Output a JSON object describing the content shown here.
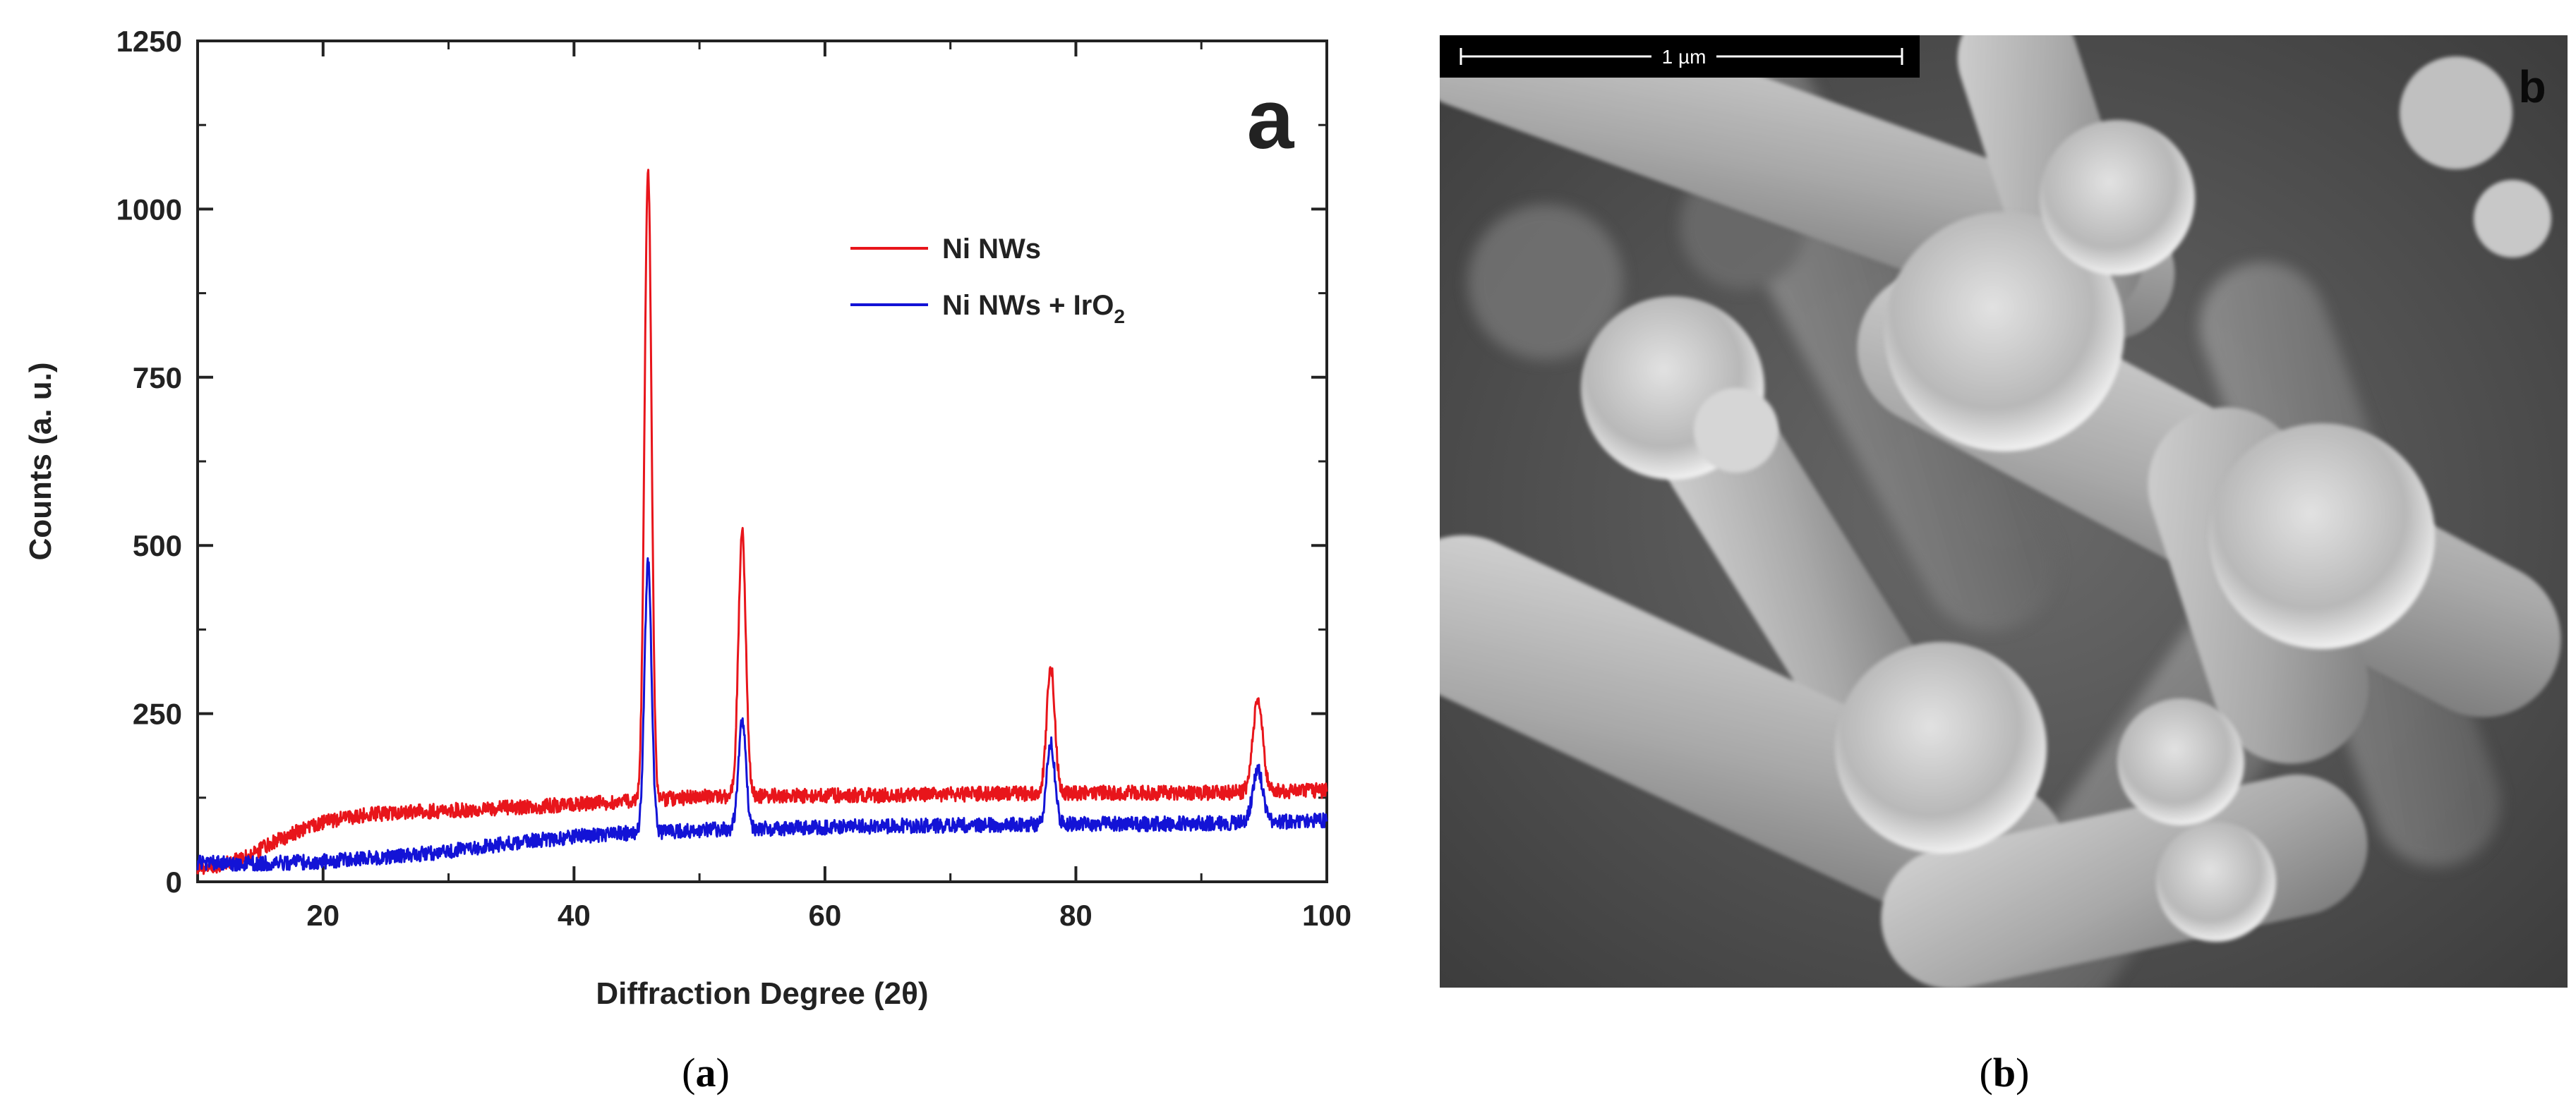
{
  "chart_data": {
    "type": "line",
    "panel_letter": "a",
    "xlabel": "Diffraction Degree (2θ)",
    "ylabel": "Counts (a. u.)",
    "xlim": [
      10,
      100
    ],
    "ylim": [
      0,
      1250
    ],
    "x_ticks": [
      20,
      40,
      60,
      80,
      100
    ],
    "y_ticks": [
      0,
      250,
      500,
      750,
      1000,
      1250
    ],
    "grid": false,
    "legend_position": "top-right",
    "series": [
      {
        "name": "Ni NWs",
        "color": "#e8151b",
        "baseline": [
          [
            10,
            22
          ],
          [
            12,
            25
          ],
          [
            14,
            38
          ],
          [
            16,
            58
          ],
          [
            18,
            75
          ],
          [
            20,
            88
          ],
          [
            22,
            96
          ],
          [
            25,
            102
          ],
          [
            30,
            106
          ],
          [
            35,
            110
          ],
          [
            40,
            115
          ],
          [
            43,
            118
          ],
          [
            45,
            121
          ],
          [
            48,
            124
          ],
          [
            50,
            126
          ],
          [
            52,
            127
          ],
          [
            55,
            128
          ],
          [
            60,
            128
          ],
          [
            65,
            129
          ],
          [
            70,
            130
          ],
          [
            75,
            131
          ],
          [
            80,
            132
          ],
          [
            85,
            132
          ],
          [
            90,
            132
          ],
          [
            95,
            134
          ],
          [
            100,
            136
          ]
        ],
        "peaks": [
          {
            "x": 45.9,
            "y": 1060,
            "width": 0.28
          },
          {
            "x": 53.4,
            "y": 520,
            "width": 0.3
          },
          {
            "x": 78.0,
            "y": 322,
            "width": 0.32
          },
          {
            "x": 94.5,
            "y": 268,
            "width": 0.4
          }
        ]
      },
      {
        "name": "Ni NWs + IrO2",
        "legend_label": "Ni NWs + IrO",
        "legend_subscript": "2",
        "color": "#1313d6",
        "baseline": [
          [
            10,
            28
          ],
          [
            15,
            27
          ],
          [
            20,
            30
          ],
          [
            25,
            37
          ],
          [
            30,
            45
          ],
          [
            35,
            58
          ],
          [
            40,
            67
          ],
          [
            43,
            71
          ],
          [
            45,
            73
          ],
          [
            48,
            75
          ],
          [
            50,
            77
          ],
          [
            55,
            79
          ],
          [
            60,
            81
          ],
          [
            65,
            83
          ],
          [
            70,
            84
          ],
          [
            75,
            85
          ],
          [
            80,
            86
          ],
          [
            85,
            86
          ],
          [
            90,
            87
          ],
          [
            95,
            89
          ],
          [
            100,
            91
          ]
        ],
        "peaks": [
          {
            "x": 45.9,
            "y": 475,
            "width": 0.28
          },
          {
            "x": 53.4,
            "y": 243,
            "width": 0.3
          },
          {
            "x": 78.0,
            "y": 205,
            "width": 0.32
          },
          {
            "x": 94.5,
            "y": 168,
            "width": 0.4
          }
        ]
      }
    ]
  },
  "sem_image": {
    "panel_letter": "b",
    "scale_bar_label": "1 µm"
  },
  "captions": {
    "left_open": "(",
    "left_letter": "a",
    "left_close": ")",
    "right_open": "(",
    "right_letter": "b",
    "right_close": ")"
  }
}
